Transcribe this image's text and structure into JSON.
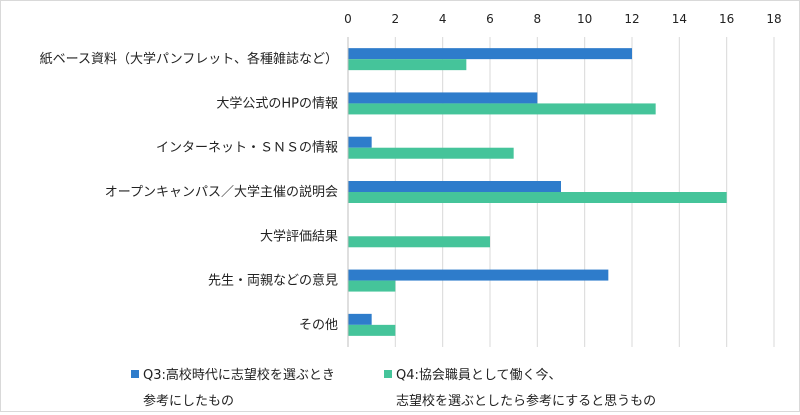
{
  "chart_data": {
    "type": "bar",
    "orientation": "horizontal",
    "categories": [
      "紙ベース資料（大学パンフレット、各種雑誌など）",
      "大学公式のHPの情報",
      "インターネット・ＳＮＳの情報",
      "オープンキャンパス／大学主催の説明会",
      "大学評価結果",
      "先生・両親などの意見",
      "その他"
    ],
    "series": [
      {
        "name_line1": "Q3:高校時代に志望校を選ぶとき",
        "name_line2": "参考にしたもの",
        "color": "#2e7ccb",
        "values": [
          12,
          8,
          1,
          9,
          0,
          11,
          1
        ]
      },
      {
        "name_line1": "Q4:協会職員として働く今、",
        "name_line2": "志望校を選ぶとしたら参考にすると思うもの",
        "color": "#45c49a",
        "values": [
          5,
          13,
          7,
          16,
          6,
          2,
          2
        ]
      }
    ],
    "xlim": [
      0,
      18
    ],
    "xticks": [
      "0",
      "2",
      "4",
      "6",
      "8",
      "10",
      "12",
      "14",
      "16",
      "18"
    ],
    "grid": true,
    "axis_position": "top",
    "legend_position": "bottom"
  }
}
